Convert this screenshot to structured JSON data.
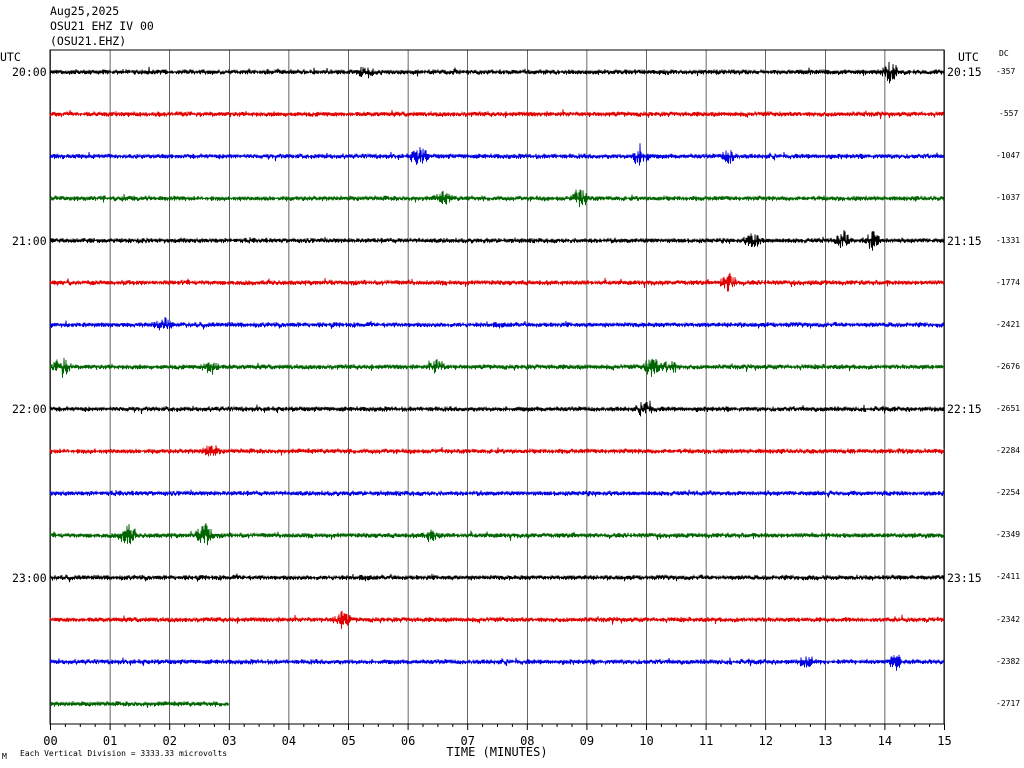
{
  "header": {
    "date": "Aug25,2025",
    "station": "OSU21 EHZ IV 00",
    "code": "(OSU21.EHZ)"
  },
  "left_axis_label": "UTC",
  "right_axis_label": "UTC",
  "dc_label": "DC",
  "left_times": [
    "20:00",
    "21:00",
    "22:00",
    "23:00"
  ],
  "right_times": [
    "20:15",
    "21:15",
    "22:15",
    "23:15"
  ],
  "dc_values": [
    "-357",
    "-557",
    "-1047",
    "-1037",
    "-1331",
    "-1774",
    "-2421",
    "-2676",
    "-2651",
    "-2284",
    "-2254",
    "-2349",
    "-2411",
    "-2342",
    "-2382",
    "-2717"
  ],
  "footer": {
    "scale_note": "Each Vertical Division = 3333.33 microvolts",
    "corner_mark": "M"
  },
  "colors": {
    "trace_cycle": [
      "#000000",
      "#e00000",
      "#0000e0",
      "#006400"
    ],
    "grid": "#000000"
  },
  "chart_data": {
    "type": "line",
    "title": "",
    "xlabel": "TIME (MINUTES)",
    "xlim": [
      0,
      15
    ],
    "x_ticks": [
      "00",
      "01",
      "02",
      "03",
      "04",
      "05",
      "06",
      "07",
      "08",
      "09",
      "10",
      "11",
      "12",
      "13",
      "14",
      "15"
    ],
    "rows": 16,
    "row_minutes": 15,
    "last_row_end_minute": 3,
    "events": [
      {
        "row": 0,
        "minute": 14.1,
        "amp": 2.2
      },
      {
        "row": 0,
        "minute": 5.3,
        "amp": 1.3
      },
      {
        "row": 2,
        "minute": 6.2,
        "amp": 2.0
      },
      {
        "row": 2,
        "minute": 9.9,
        "amp": 2.3
      },
      {
        "row": 2,
        "minute": 11.4,
        "amp": 1.3
      },
      {
        "row": 3,
        "minute": 8.9,
        "amp": 1.8
      },
      {
        "row": 3,
        "minute": 6.6,
        "amp": 1.2
      },
      {
        "row": 4,
        "minute": 11.8,
        "amp": 1.6
      },
      {
        "row": 4,
        "minute": 13.3,
        "amp": 1.9
      },
      {
        "row": 4,
        "minute": 13.8,
        "amp": 2.0
      },
      {
        "row": 5,
        "minute": 11.4,
        "amp": 2.0
      },
      {
        "row": 6,
        "minute": 1.9,
        "amp": 1.3
      },
      {
        "row": 7,
        "minute": 0.2,
        "amp": 2.0
      },
      {
        "row": 7,
        "minute": 2.7,
        "amp": 1.6
      },
      {
        "row": 7,
        "minute": 6.5,
        "amp": 1.5
      },
      {
        "row": 7,
        "minute": 10.1,
        "amp": 2.0
      },
      {
        "row": 7,
        "minute": 10.4,
        "amp": 1.6
      },
      {
        "row": 8,
        "minute": 10.0,
        "amp": 1.8
      },
      {
        "row": 9,
        "minute": 2.7,
        "amp": 1.4
      },
      {
        "row": 11,
        "minute": 1.3,
        "amp": 2.4
      },
      {
        "row": 11,
        "minute": 2.6,
        "amp": 2.6
      },
      {
        "row": 11,
        "minute": 6.4,
        "amp": 1.2
      },
      {
        "row": 13,
        "minute": 4.9,
        "amp": 1.7
      },
      {
        "row": 14,
        "minute": 14.2,
        "amp": 1.6
      },
      {
        "row": 14,
        "minute": 12.7,
        "amp": 1.1
      }
    ]
  }
}
